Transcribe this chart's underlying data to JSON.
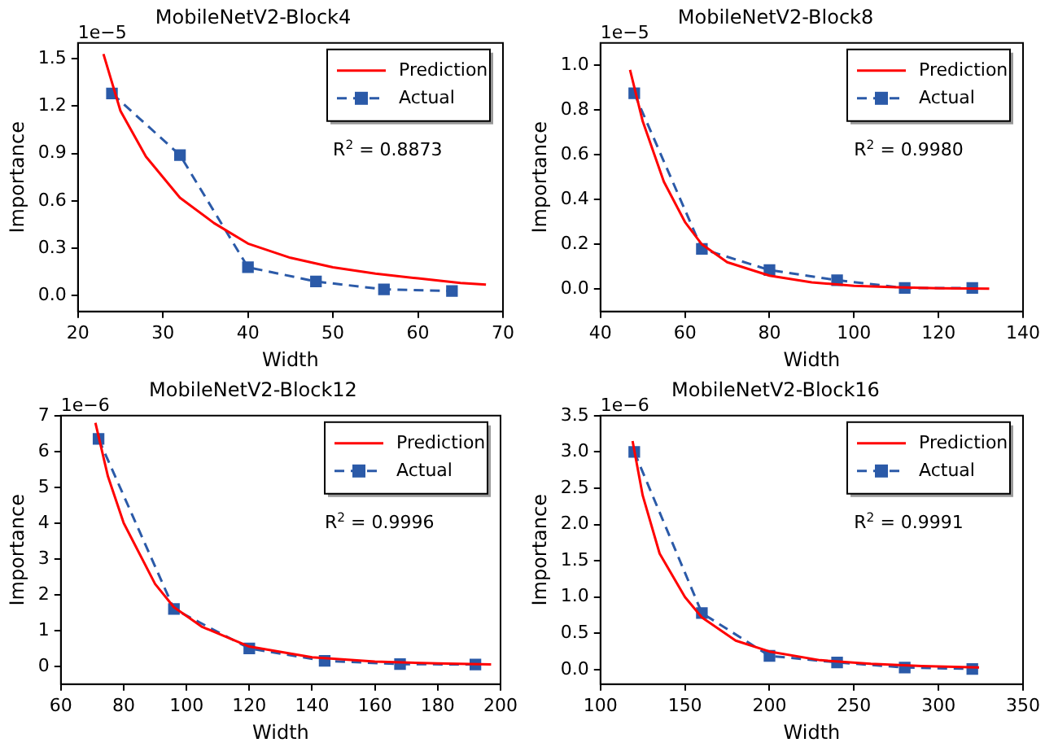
{
  "chart_data": [
    {
      "type": "line",
      "title": "MobileNetV2-Block4",
      "xlabel": "Width",
      "ylabel": "Importance",
      "annotations": [
        "1e−5",
        "R$^{2}$ = 0.8873"
      ],
      "xlim": [
        20,
        70
      ],
      "xticks": [
        20,
        30,
        40,
        50,
        60,
        70
      ],
      "ylim": [
        -0.1,
        1.6
      ],
      "yticks": [
        {
          "value": 0,
          "label": "0.0"
        },
        0.3,
        0.6,
        0.9,
        1.2,
        1.5
      ],
      "grid": false,
      "legend": "top right",
      "series": [
        {
          "name": "Prediction",
          "color": "#ff0000",
          "marker": "none",
          "line_style": "solid",
          "x": [
            23,
            25,
            28,
            32,
            36,
            40,
            45,
            50,
            55,
            60,
            65,
            68
          ],
          "values": [
            1.53,
            1.17,
            0.88,
            0.62,
            0.46,
            0.33,
            0.24,
            0.18,
            0.14,
            0.11,
            0.08,
            0.07
          ]
        },
        {
          "name": "Actual",
          "color": "#2b5aa8",
          "marker": "square",
          "line_style": "dashed",
          "x": [
            24,
            32,
            40,
            48,
            56,
            64
          ],
          "values": [
            1.28,
            0.89,
            0.18,
            0.09,
            0.04,
            0.03
          ]
        }
      ]
    },
    {
      "type": "line",
      "title": "MobileNetV2-Block8",
      "xlabel": "Width",
      "ylabel": "Importance",
      "annotations": [
        "1e−5",
        "R$^{2}$ = 0.9980"
      ],
      "xlim": [
        40,
        140
      ],
      "xticks": [
        40,
        60,
        80,
        100,
        120,
        140
      ],
      "ylim": [
        -0.1,
        1.1
      ],
      "yticks": [
        {
          "value": 0,
          "label": "0.0"
        },
        0.2,
        0.4,
        0.6,
        0.8,
        {
          "value": 1,
          "label": "1.0"
        }
      ],
      "grid": false,
      "legend": "top right",
      "series": [
        {
          "name": "Prediction",
          "color": "#ff0000",
          "marker": "none",
          "line_style": "solid",
          "x": [
            47,
            50,
            55,
            60,
            64,
            70,
            80,
            90,
            100,
            110,
            120,
            132
          ],
          "values": [
            0.98,
            0.75,
            0.48,
            0.3,
            0.2,
            0.12,
            0.06,
            0.03,
            0.015,
            0.008,
            0.004,
            0.002
          ]
        },
        {
          "name": "Actual",
          "color": "#2b5aa8",
          "marker": "square",
          "line_style": "dashed",
          "x": [
            48,
            64,
            80,
            96,
            112,
            128
          ],
          "values": [
            0.875,
            0.18,
            0.085,
            0.04,
            0.005,
            0.005
          ]
        }
      ]
    },
    {
      "type": "line",
      "title": "MobileNetV2-Block12",
      "xlabel": "Width",
      "ylabel": "Importance",
      "annotations": [
        "1e−6",
        "R$^{2}$ = 0.9996"
      ],
      "xlim": [
        60,
        200
      ],
      "xticks": [
        60,
        80,
        100,
        120,
        140,
        160,
        180,
        200
      ],
      "ylim": [
        -0.5,
        7
      ],
      "yticks": [
        0,
        1,
        2,
        3,
        4,
        5,
        6,
        7
      ],
      "grid": false,
      "legend": "top right",
      "series": [
        {
          "name": "Prediction",
          "color": "#ff0000",
          "marker": "none",
          "line_style": "solid",
          "x": [
            71,
            75,
            80,
            90,
            96,
            105,
            120,
            140,
            160,
            180,
            197
          ],
          "values": [
            6.8,
            5.3,
            4.0,
            2.3,
            1.65,
            1.1,
            0.55,
            0.25,
            0.13,
            0.08,
            0.05
          ]
        },
        {
          "name": "Actual",
          "color": "#2b5aa8",
          "marker": "square",
          "line_style": "dashed",
          "x": [
            72,
            96,
            120,
            144,
            168,
            192
          ],
          "values": [
            6.35,
            1.6,
            0.5,
            0.15,
            0.06,
            0.05
          ]
        }
      ]
    },
    {
      "type": "line",
      "title": "MobileNetV2-Block16",
      "xlabel": "Width",
      "ylabel": "Importance",
      "annotations": [
        "1e−6",
        "R$^{2}$ = 0.9991"
      ],
      "xlim": [
        100,
        350
      ],
      "xticks": [
        100,
        150,
        200,
        250,
        300,
        350
      ],
      "ylim": [
        -0.2,
        3.5
      ],
      "yticks": [
        {
          "value": 0,
          "label": "0.0"
        },
        0.5,
        {
          "value": 1,
          "label": "1.0"
        },
        1.5,
        {
          "value": 2,
          "label": "2.0"
        },
        2.5,
        {
          "value": 3,
          "label": "3.0"
        },
        3.5
      ],
      "grid": false,
      "legend": "top right",
      "series": [
        {
          "name": "Prediction",
          "color": "#ff0000",
          "marker": "none",
          "line_style": "solid",
          "x": [
            119,
            125,
            135,
            150,
            160,
            180,
            200,
            230,
            260,
            290,
            324
          ],
          "values": [
            3.15,
            2.4,
            1.6,
            1.0,
            0.72,
            0.4,
            0.25,
            0.13,
            0.08,
            0.05,
            0.03
          ]
        },
        {
          "name": "Actual",
          "color": "#2b5aa8",
          "marker": "square",
          "line_style": "dashed",
          "x": [
            120,
            160,
            200,
            240,
            280,
            320
          ],
          "values": [
            3.0,
            0.78,
            0.19,
            0.1,
            0.03,
            0.01
          ]
        }
      ]
    }
  ]
}
